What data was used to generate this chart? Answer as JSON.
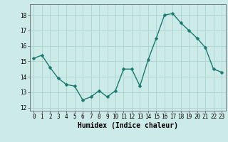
{
  "x": [
    0,
    1,
    2,
    3,
    4,
    5,
    6,
    7,
    8,
    9,
    10,
    11,
    12,
    13,
    14,
    15,
    16,
    17,
    18,
    19,
    20,
    21,
    22,
    23
  ],
  "y": [
    15.2,
    15.4,
    14.6,
    13.9,
    13.5,
    13.4,
    12.5,
    12.7,
    13.1,
    12.7,
    13.1,
    14.5,
    14.5,
    13.4,
    15.1,
    16.5,
    18.0,
    18.1,
    17.5,
    17.0,
    16.5,
    15.9,
    14.5,
    14.3
  ],
  "bg_color": "#cceae7",
  "grid_color": "#aad4d0",
  "line_color": "#1a7a6e",
  "marker_color": "#1a7a6e",
  "xlabel": "Humidex (Indice chaleur)",
  "ylim": [
    11.8,
    18.7
  ],
  "xlim": [
    -0.5,
    23.5
  ],
  "yticks": [
    12,
    13,
    14,
    15,
    16,
    17,
    18
  ],
  "xticks": [
    0,
    1,
    2,
    3,
    4,
    5,
    6,
    7,
    8,
    9,
    10,
    11,
    12,
    13,
    14,
    15,
    16,
    17,
    18,
    19,
    20,
    21,
    22,
    23
  ],
  "tick_fontsize": 5.5,
  "xlabel_fontsize": 7,
  "line_width": 1.0,
  "marker_size": 2.5
}
